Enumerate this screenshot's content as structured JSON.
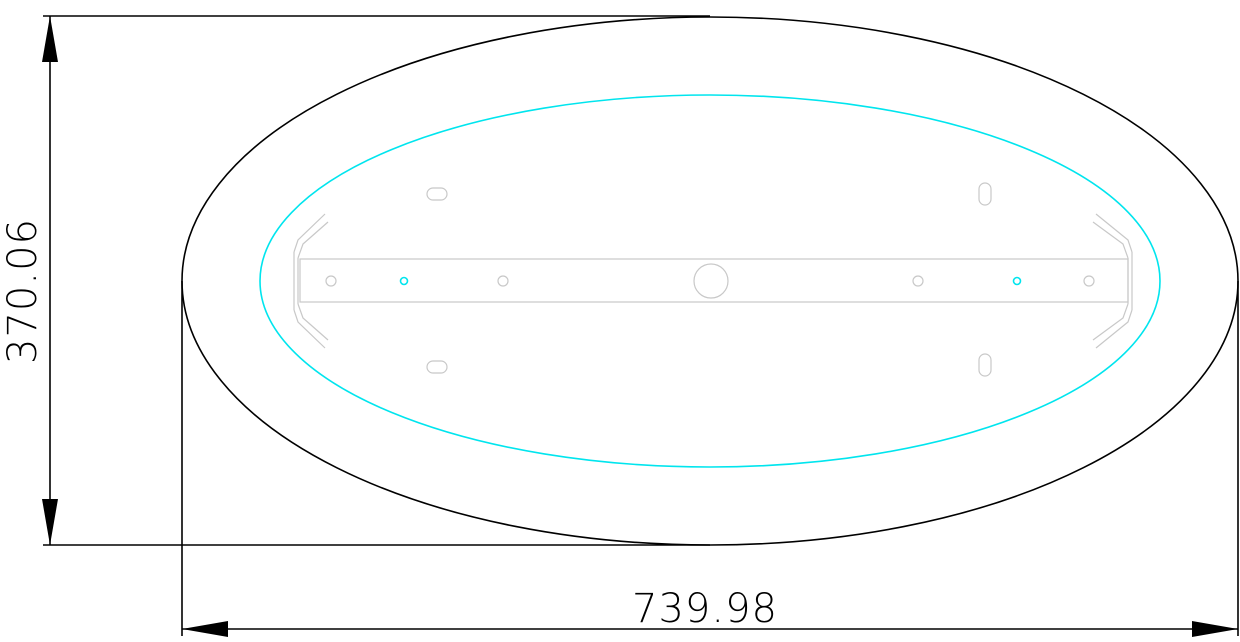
{
  "drawing": {
    "width_dimension": "739.98",
    "height_dimension": "370.06"
  },
  "colors": {
    "outline": "#000000",
    "inner_outline": "#00e5ee",
    "bracket": "#c8c8c8",
    "background": "#ffffff"
  }
}
